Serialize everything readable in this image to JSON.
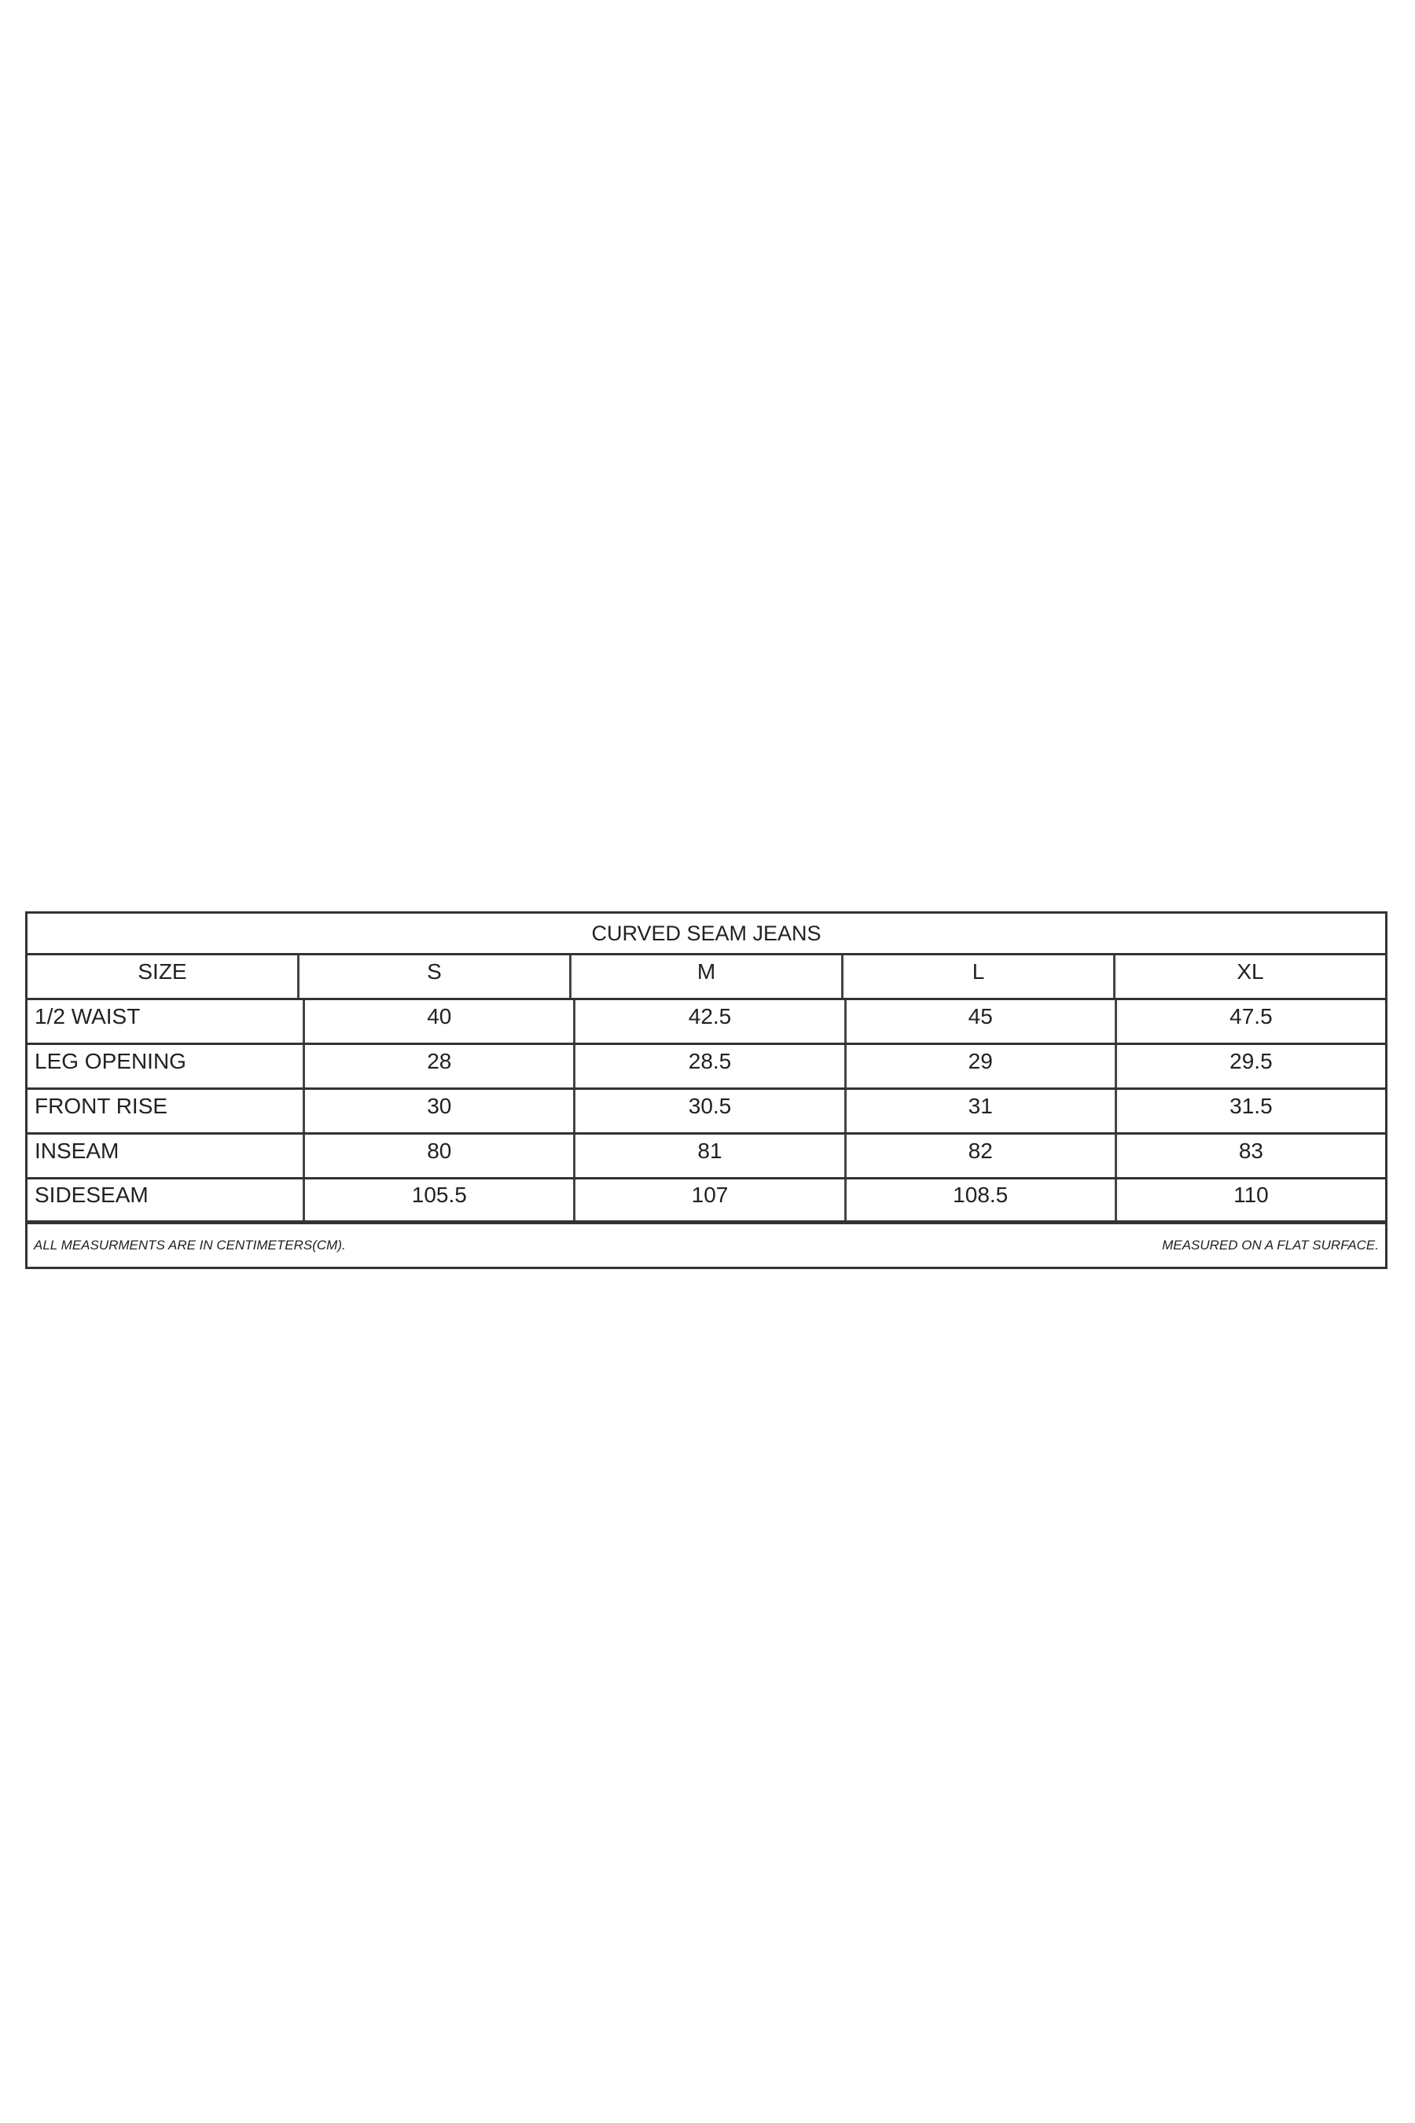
{
  "table": {
    "title": "CURVED SEAM JEANS",
    "header": [
      "SIZE",
      "S",
      "M",
      "L",
      "XL"
    ],
    "rows": [
      [
        "1/2 WAIST",
        "40",
        "42.5",
        "45",
        "47.5"
      ],
      [
        "LEG OPENING",
        "28",
        "28.5",
        "29",
        "29.5"
      ],
      [
        "FRONT RISE",
        "30",
        "30.5",
        "31",
        "31.5"
      ],
      [
        "INSEAM",
        "80",
        "81",
        "82",
        "83"
      ],
      [
        "SIDESEAM",
        "105.5",
        "107",
        "108.5",
        "110"
      ]
    ],
    "footer_left": "ALL MEASURMENTS ARE IN CENTIMETERS(CM).",
    "footer_right": "MEASURED ON A FLAT SURFACE."
  }
}
